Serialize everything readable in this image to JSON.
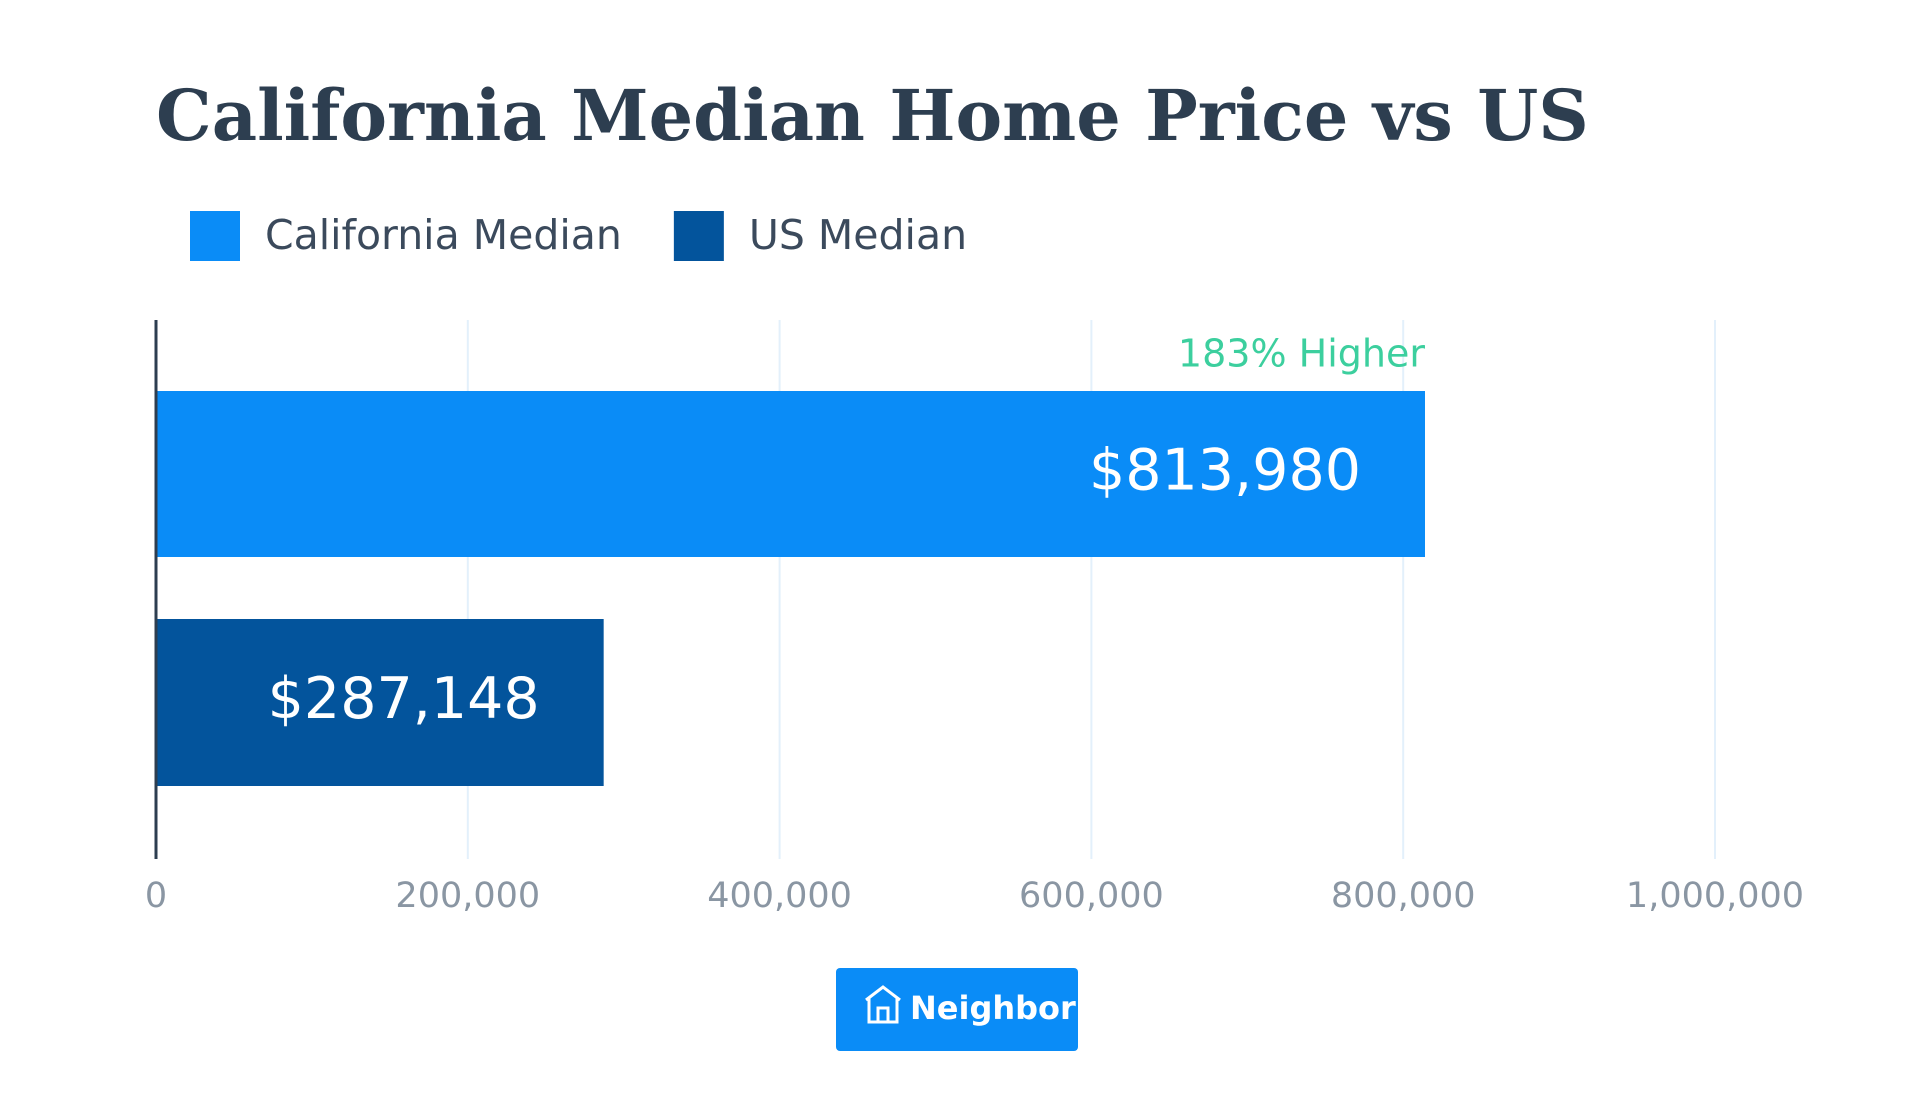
{
  "chart_data": {
    "type": "bar",
    "orientation": "horizontal",
    "title": "California Median Home Price vs US",
    "series": [
      {
        "name": "California Median",
        "color": "#0a8cf7",
        "values": [
          813980
        ],
        "value_labels": [
          "$813,980"
        ]
      },
      {
        "name": "US Median",
        "color": "#03549c",
        "values": [
          287148
        ],
        "value_labels": [
          "$287,148"
        ]
      }
    ],
    "annotation": "183% Higher",
    "xlim": [
      0,
      1000000
    ],
    "xticks": [
      0,
      {
        "value": 200000,
        "label": "200,000"
      },
      {
        "value": 400000,
        "label": "400,000"
      },
      {
        "value": 600000,
        "label": "600,000"
      },
      {
        "value": 800000,
        "label": "800,000"
      },
      {
        "value": 1000000,
        "label": "1,000,000"
      }
    ],
    "grid": true,
    "legend": "top-left"
  },
  "logo": "Neighbor"
}
